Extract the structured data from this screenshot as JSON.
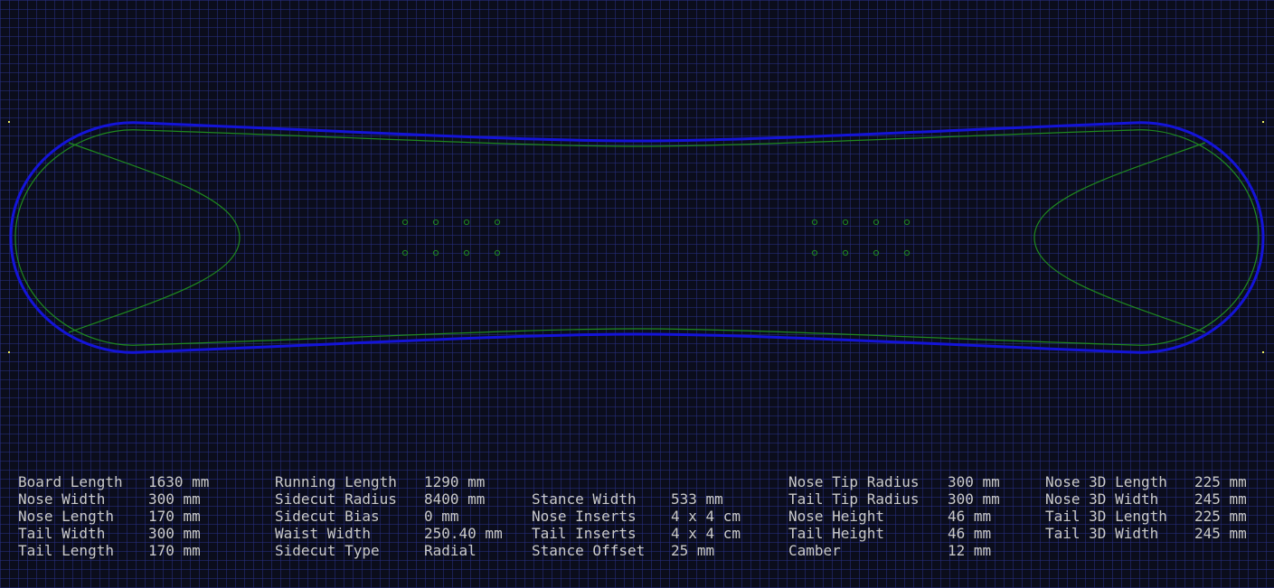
{
  "colors": {
    "background": "#0b0d1c",
    "grid": "#28308a",
    "outline": "#1414d8",
    "guides": "#1f8a1f",
    "text": "#c9c9c9",
    "corner_marker": "#e8e860"
  },
  "params": {
    "col1": [
      {
        "label": "Board Length",
        "value": "1630 mm"
      },
      {
        "label": "Nose Width",
        "value": "300 mm"
      },
      {
        "label": "Nose Length",
        "value": "170 mm"
      },
      {
        "label": "Tail Width",
        "value": "300 mm"
      },
      {
        "label": "Tail Length",
        "value": "170 mm"
      }
    ],
    "col2": [
      {
        "label": "Running Length",
        "value": "1290 mm"
      },
      {
        "label": "Sidecut Radius",
        "value": "8400 mm"
      },
      {
        "label": "Sidecut Bias",
        "value": "0 mm"
      },
      {
        "label": "Waist Width",
        "value": "250.40 mm"
      },
      {
        "label": "Sidecut Type",
        "value": "Radial"
      }
    ],
    "col3": [
      {
        "label": "",
        "value": ""
      },
      {
        "label": "Stance Width",
        "value": "533 mm"
      },
      {
        "label": "Nose Inserts",
        "value": "4 x 4 cm"
      },
      {
        "label": "Tail Inserts",
        "value": "4 x 4 cm"
      },
      {
        "label": "Stance Offset",
        "value": "25 mm"
      }
    ],
    "col4": [
      {
        "label": "Nose Tip Radius",
        "value": "300 mm"
      },
      {
        "label": "Tail Tip Radius",
        "value": "300 mm"
      },
      {
        "label": "Nose Height",
        "value": "46 mm"
      },
      {
        "label": "Tail Height",
        "value": "46 mm"
      },
      {
        "label": "Camber",
        "value": "12 mm"
      }
    ],
    "col5": [
      {
        "label": "Nose 3D Length",
        "value": "225 mm"
      },
      {
        "label": "Nose 3D Width",
        "value": "245 mm"
      },
      {
        "label": "Tail 3D Length",
        "value": "225 mm"
      },
      {
        "label": "Tail 3D Width",
        "value": "245 mm"
      }
    ]
  }
}
